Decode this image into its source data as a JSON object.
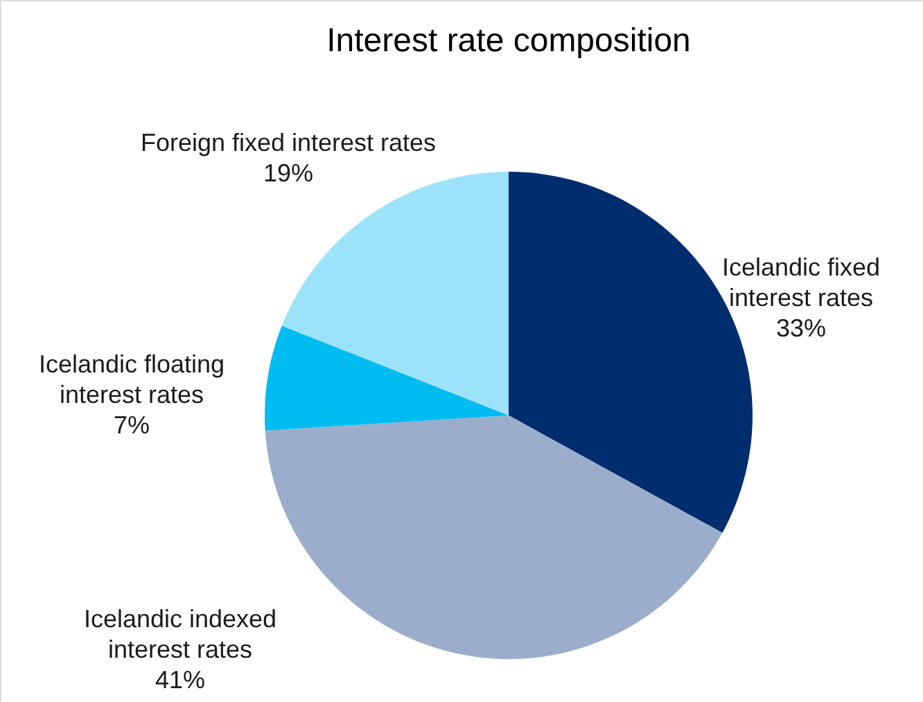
{
  "chart_data": {
    "type": "pie",
    "title": "Interest rate composition",
    "categories": [
      "Icelandic fixed\ninterest rates",
      "Icelandic indexed\ninterest rates",
      "Icelandic floating\ninterest rates",
      "Foreign fixed interest rates"
    ],
    "values": [
      33,
      41,
      7,
      19
    ],
    "value_labels": [
      "33%",
      "41%",
      "7%",
      "19%"
    ],
    "colors": [
      "#002d6e",
      "#9aaecb",
      "#00bcf0",
      "#9ce3fa"
    ]
  }
}
